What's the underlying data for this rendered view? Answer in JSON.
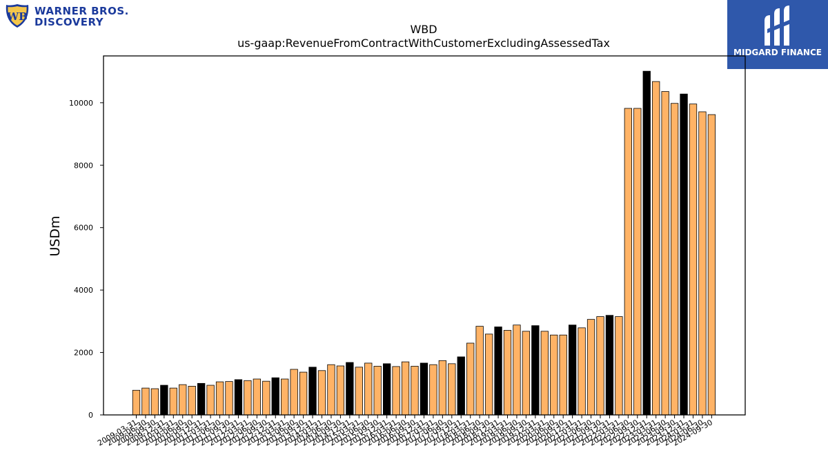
{
  "logos": {
    "left_line1": "WARNER BROS.",
    "left_line2": "DISCOVERY",
    "right_name": "MIDGARD FINANCE"
  },
  "colors": {
    "bar_default": "#ffb366",
    "bar_highlight": "#000000",
    "bar_edge": "#000000",
    "logo_left": "#1b3a9c",
    "logo_right_bg": "#2f58ab"
  },
  "chart_data": {
    "type": "bar",
    "title": "WBD",
    "subtitle": "us-gaap:RevenueFromContractWithCustomerExcludingAssessedTax",
    "xlabel": "",
    "ylabel": "USDm",
    "ylim": [
      0,
      11500
    ],
    "yticks": [
      0,
      2000,
      4000,
      6000,
      8000,
      10000
    ],
    "grid": false,
    "legend": "none",
    "categories": [
      "2009-03-31",
      "2009-06-30",
      "2009-09-30",
      "2009-12-31",
      "2010-03-31",
      "2010-06-30",
      "2010-09-30",
      "2010-12-31",
      "2011-03-31",
      "2011-06-30",
      "2011-09-30",
      "2011-12-31",
      "2012-03-31",
      "2012-06-30",
      "2012-09-30",
      "2012-12-31",
      "2013-03-31",
      "2013-06-30",
      "2013-09-30",
      "2013-12-31",
      "2014-03-31",
      "2014-06-30",
      "2014-09-30",
      "2014-12-31",
      "2015-03-31",
      "2015-06-30",
      "2015-09-30",
      "2015-12-31",
      "2016-03-31",
      "2016-06-30",
      "2016-09-30",
      "2016-12-31",
      "2017-03-31",
      "2017-06-30",
      "2017-09-30",
      "2017-12-31",
      "2018-03-31",
      "2018-06-30",
      "2018-09-30",
      "2018-12-31",
      "2019-03-31",
      "2019-06-30",
      "2019-09-30",
      "2019-12-31",
      "2020-03-31",
      "2020-06-30",
      "2020-09-30",
      "2020-12-31",
      "2021-03-31",
      "2021-06-30",
      "2021-09-30",
      "2021-12-31",
      "2022-03-31",
      "2022-06-30",
      "2022-09-30",
      "2022-12-31",
      "2023-03-31",
      "2023-06-30",
      "2023-09-30",
      "2023-12-31",
      "2024-03-31",
      "2024-06-30",
      "2024-09-30"
    ],
    "values": [
      790,
      860,
      840,
      950,
      860,
      970,
      920,
      1010,
      950,
      1060,
      1070,
      1130,
      1100,
      1150,
      1080,
      1190,
      1150,
      1460,
      1370,
      1530,
      1420,
      1610,
      1570,
      1680,
      1530,
      1660,
      1560,
      1640,
      1550,
      1700,
      1560,
      1660,
      1610,
      1740,
      1640,
      1860,
      2300,
      2840,
      2590,
      2820,
      2710,
      2880,
      2680,
      2860,
      2680,
      2560,
      2560,
      2880,
      2790,
      3060,
      3150,
      3190,
      3150,
      9820,
      9820,
      11010,
      10680,
      10360,
      9980,
      10280,
      9960,
      9710,
      9620
    ],
    "highlighted_categories": [
      "2009-12-31",
      "2010-12-31",
      "2011-12-31",
      "2012-12-31",
      "2013-12-31",
      "2014-12-31",
      "2015-12-31",
      "2016-12-31",
      "2017-12-31",
      "2018-12-31",
      "2019-12-31",
      "2020-12-31",
      "2021-12-31",
      "2022-12-31",
      "2023-12-31"
    ]
  }
}
